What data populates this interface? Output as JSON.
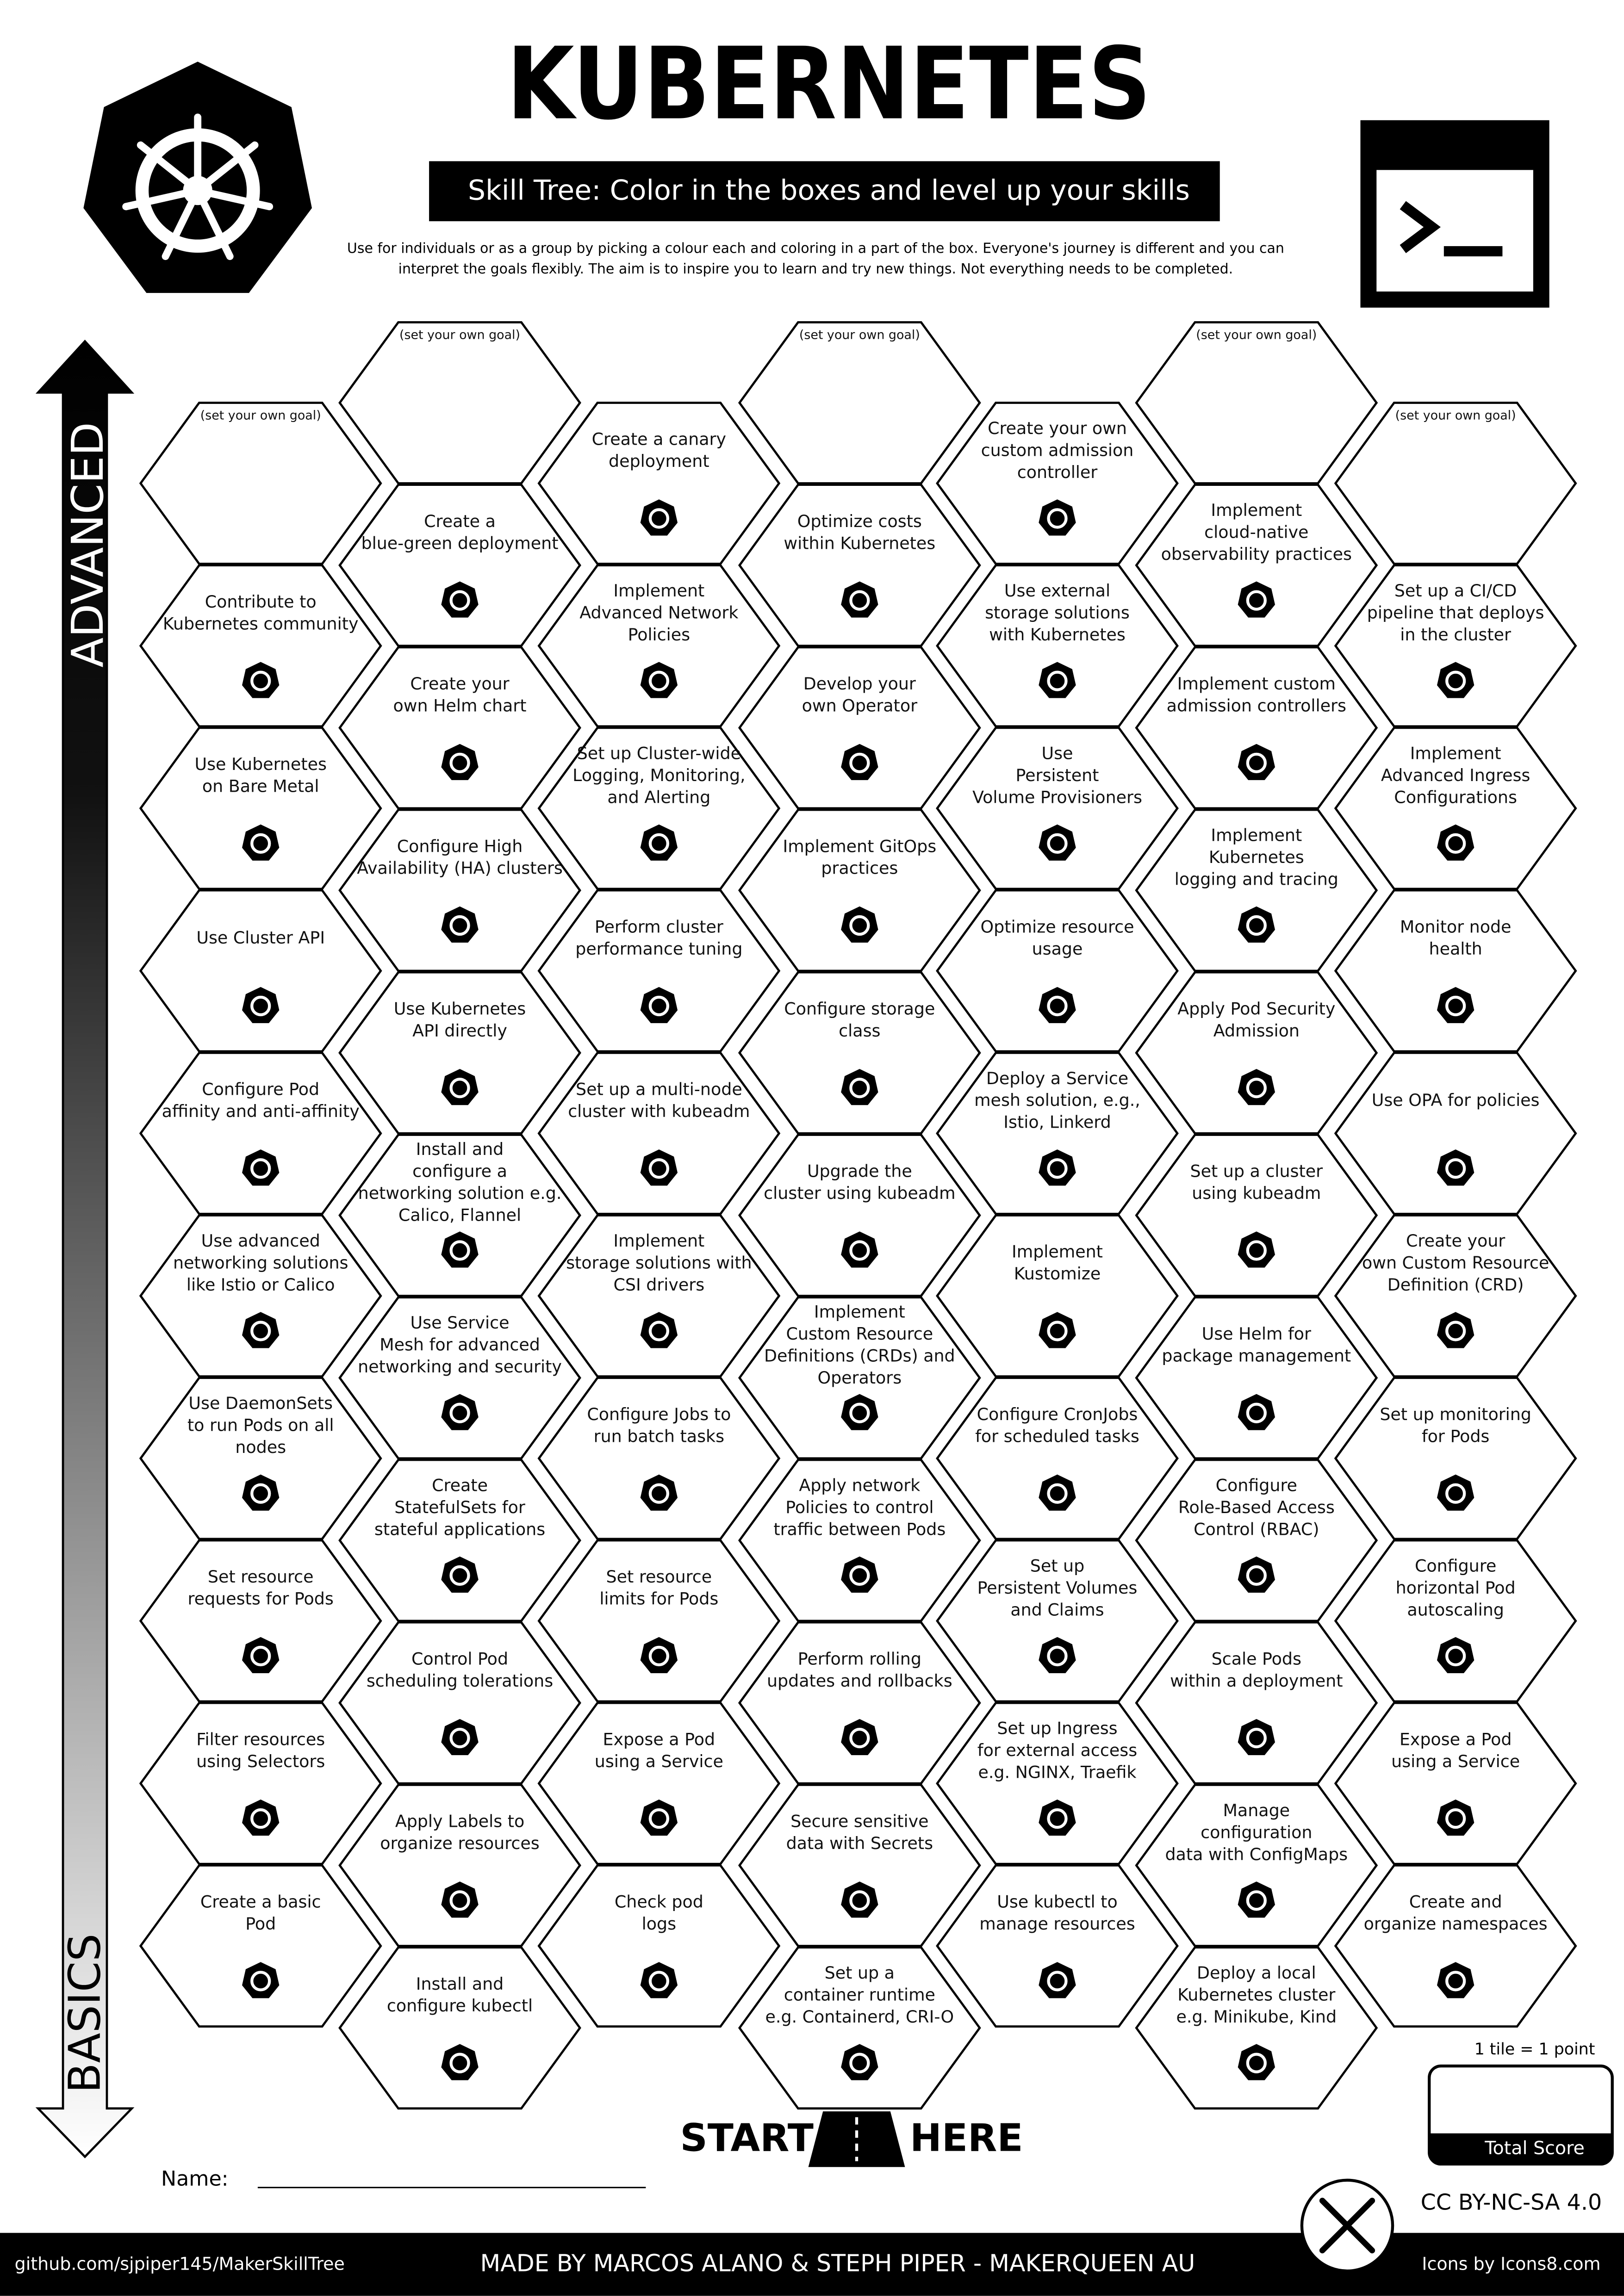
{
  "header": {
    "title": "KUBERNETES",
    "subtitle": "Skill Tree:  Color in the boxes and level up your skills",
    "description": [
      "Use for individuals or as a group by picking a colour each and coloring in a part of the box.  Everyone's journey is different and you can",
      "interpret the goals flexibly.  The aim is to inspire you to learn and try new things. Not everything needs to be completed."
    ]
  },
  "axis": {
    "top": "ADVANCED",
    "bottom": "BASICS"
  },
  "tiles": {
    "columns": [
      [
        {
          "goal": "(set your own goal)"
        },
        {
          "lines": [
            "Contribute to",
            "Kubernetes community"
          ]
        },
        {
          "lines": [
            "Use Kubernetes",
            "on Bare Metal"
          ]
        },
        {
          "lines": [
            "Use Cluster API"
          ]
        },
        {
          "lines": [
            "Configure Pod",
            "affinity and anti-affinity"
          ]
        },
        {
          "lines": [
            "Use advanced",
            "networking solutions",
            "like Istio or Calico"
          ]
        },
        {
          "lines": [
            "Use DaemonSets",
            "to run Pods on all",
            "nodes"
          ]
        },
        {
          "lines": [
            "Set resource",
            "requests for Pods"
          ]
        },
        {
          "lines": [
            "Filter resources",
            "using Selectors"
          ]
        },
        {
          "lines": [
            "Create a basic",
            "Pod"
          ]
        }
      ],
      [
        {
          "goal": "(set your own goal)"
        },
        {
          "lines": [
            "Create a",
            "blue-green deployment"
          ]
        },
        {
          "lines": [
            "Create your",
            "own Helm chart"
          ]
        },
        {
          "lines": [
            "Configure High",
            "Availability (HA) clusters"
          ]
        },
        {
          "lines": [
            "Use Kubernetes",
            "API directly"
          ]
        },
        {
          "lines": [
            "Install and",
            "configure a",
            "networking solution e.g.",
            "Calico, Flannel"
          ]
        },
        {
          "lines": [
            "Use Service",
            "Mesh for advanced",
            "networking and security"
          ]
        },
        {
          "lines": [
            "Create",
            "StatefulSets for",
            "stateful applications"
          ]
        },
        {
          "lines": [
            "Control Pod",
            "scheduling tolerations"
          ]
        },
        {
          "lines": [
            "Apply Labels to",
            "organize resources"
          ]
        },
        {
          "lines": [
            "Install and",
            "configure kubectl"
          ]
        }
      ],
      [
        {
          "lines": [
            "Create a canary",
            "deployment"
          ]
        },
        {
          "lines": [
            "Implement",
            "Advanced Network",
            "Policies"
          ]
        },
        {
          "lines": [
            "Set up Cluster-wide",
            "Logging, Monitoring,",
            "and Alerting"
          ]
        },
        {
          "lines": [
            "Perform cluster",
            "performance tuning"
          ]
        },
        {
          "lines": [
            "Set up a multi-node",
            "cluster with kubeadm"
          ]
        },
        {
          "lines": [
            "Implement",
            "storage solutions with",
            "CSI drivers"
          ]
        },
        {
          "lines": [
            "Configure Jobs to",
            "run batch tasks"
          ]
        },
        {
          "lines": [
            "Set resource",
            "limits for Pods"
          ]
        },
        {
          "lines": [
            "Expose a Pod",
            "using a Service"
          ]
        },
        {
          "lines": [
            "Check pod",
            "logs"
          ]
        }
      ],
      [
        {
          "goal": "(set your own goal)"
        },
        {
          "lines": [
            "Optimize costs",
            "within Kubernetes"
          ]
        },
        {
          "lines": [
            "Develop your",
            "own Operator"
          ]
        },
        {
          "lines": [
            "Implement GitOps",
            "practices"
          ]
        },
        {
          "lines": [
            "Configure storage",
            "class"
          ]
        },
        {
          "lines": [
            "Upgrade the",
            "cluster using kubeadm"
          ]
        },
        {
          "lines": [
            "Implement",
            "Custom Resource",
            "Definitions (CRDs) and",
            "Operators"
          ]
        },
        {
          "lines": [
            "Apply network",
            "Policies to control",
            "traffic between Pods"
          ]
        },
        {
          "lines": [
            "Perform rolling",
            "updates and rollbacks"
          ]
        },
        {
          "lines": [
            "Secure sensitive",
            "data with Secrets"
          ]
        },
        {
          "lines": [
            "Set up a",
            "container runtime",
            "e.g. Containerd, CRI-O"
          ]
        }
      ],
      [
        {
          "lines": [
            "Create your own",
            "custom admission",
            "controller"
          ]
        },
        {
          "lines": [
            "Use external",
            "storage solutions",
            "with Kubernetes"
          ]
        },
        {
          "lines": [
            "Use",
            "Persistent",
            "Volume Provisioners"
          ]
        },
        {
          "lines": [
            "Optimize resource",
            "usage"
          ]
        },
        {
          "lines": [
            "Deploy a Service",
            "mesh solution, e.g.,",
            "Istio, Linkerd"
          ]
        },
        {
          "lines": [
            "Implement",
            "Kustomize"
          ]
        },
        {
          "lines": [
            "Configure CronJobs",
            "for scheduled tasks"
          ]
        },
        {
          "lines": [
            "Set up",
            "Persistent Volumes",
            "and Claims"
          ]
        },
        {
          "lines": [
            "Set up Ingress",
            "for external access",
            "e.g. NGINX, Traefik"
          ]
        },
        {
          "lines": [
            "Use kubectl to",
            "manage resources"
          ]
        }
      ],
      [
        {
          "goal": "(set your own goal)"
        },
        {
          "lines": [
            "Implement",
            "cloud-native",
            "observability practices"
          ]
        },
        {
          "lines": [
            "Implement custom",
            "admission controllers"
          ]
        },
        {
          "lines": [
            "Implement",
            "Kubernetes",
            "logging and tracing"
          ]
        },
        {
          "lines": [
            "Apply Pod Security",
            "Admission"
          ]
        },
        {
          "lines": [
            "Set up a cluster",
            "using kubeadm"
          ]
        },
        {
          "lines": [
            "Use Helm for",
            "package management"
          ]
        },
        {
          "lines": [
            "Configure",
            "Role-Based Access",
            "Control (RBAC)"
          ]
        },
        {
          "lines": [
            "Scale Pods",
            "within a deployment"
          ]
        },
        {
          "lines": [
            "Manage",
            "configuration",
            "data with ConfigMaps"
          ]
        },
        {
          "lines": [
            "Deploy a local",
            "Kubernetes cluster",
            "e.g. Minikube, Kind"
          ]
        }
      ],
      [
        {
          "goal": "(set your own goal)"
        },
        {
          "lines": [
            "Set up a CI/CD",
            "pipeline that deploys",
            "in the cluster"
          ]
        },
        {
          "lines": [
            "Implement",
            "Advanced Ingress",
            "Configurations"
          ]
        },
        {
          "lines": [
            "Monitor node",
            "health"
          ]
        },
        {
          "lines": [
            "Use OPA for policies"
          ]
        },
        {
          "lines": [
            "Create your",
            "own Custom Resource",
            "Definition (CRD)"
          ]
        },
        {
          "lines": [
            "Set up monitoring",
            "for Pods"
          ]
        },
        {
          "lines": [
            "Configure",
            "horizontal Pod",
            "autoscaling"
          ]
        },
        {
          "lines": [
            "Expose a Pod",
            "using a Service"
          ]
        },
        {
          "lines": [
            "Create and",
            "organize namespaces"
          ]
        }
      ]
    ]
  },
  "start": {
    "left": "START",
    "right": "HERE"
  },
  "name_label": "Name:",
  "score": {
    "note": "1 tile = 1 point",
    "label": "Total Score"
  },
  "license": "CC BY-NC-SA 4.0",
  "footer": {
    "left": "github.com/sjpiper145/MakerSkillTree",
    "center": "MADE BY MARCOS ALANO & STEPH PIPER  -  MAKERQUEEN AU",
    "right": "Icons by Icons8.com"
  }
}
